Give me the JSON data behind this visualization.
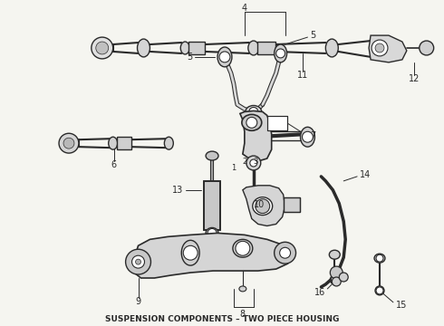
{
  "title": "SUSPENSION COMPONENTS – TWO PIECE HOUSING",
  "title_fontsize": 6.5,
  "bg_color": "#f5f5f0",
  "line_color": "#2a2a2a",
  "fig_width": 4.9,
  "fig_height": 3.6,
  "dpi": 100
}
